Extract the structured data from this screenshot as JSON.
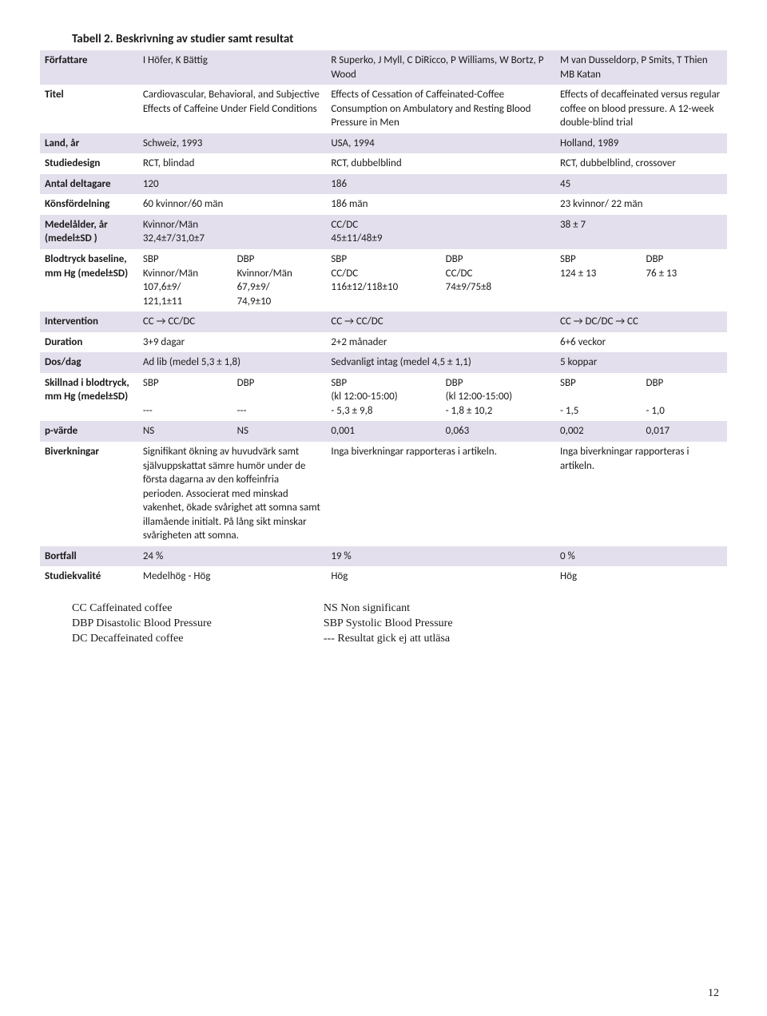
{
  "title": "Tabell 2. Beskrivning av studier samt resultat",
  "rows": {
    "forfattare": {
      "label": "Författare",
      "c1": "I Höfer, K Bättig",
      "c2": "R Superko, J Myll, C DiRicco, P Williams, W Bortz, P Wood",
      "c3": "M van Dusseldorp, P Smits, T Thien MB Katan"
    },
    "titel": {
      "label": "Titel",
      "c1": "Cardiovascular, Behavioral, and Subjective Effects of Caffeine Under Field Conditions",
      "c2": "Effects of Cessation of Caffeinated-Coffee Consumption on Ambulatory and Resting Blood Pressure in Men",
      "c3": "Effects of decaffeinated versus regular coffee on blood pressure. A 12-week double-blind trial"
    },
    "land": {
      "label": "Land, år",
      "c1": "Schweiz, 1993",
      "c2": "USA, 1994",
      "c3": "Holland, 1989"
    },
    "design": {
      "label": "Studiedesign",
      "c1": "RCT, blindad",
      "c2": "RCT, dubbelblind",
      "c3": "RCT, dubbelblind, crossover"
    },
    "antal": {
      "label": "Antal deltagare",
      "c1": "120",
      "c2": "186",
      "c3": "45"
    },
    "kons": {
      "label": "Könsfördelning",
      "c1": "60 kvinnor/60 män",
      "c2": "186 män",
      "c3": "23 kvinnor/ 22 män"
    },
    "alder": {
      "label": "Medelålder, år (medel±SD )",
      "c1": "Kvinnor/Män\n32,4±7/31,0±7",
      "c2": "CC/DC\n45±11/48±9",
      "c3": "38 ± 7"
    },
    "baseline": {
      "label": "Blodtryck baseline, mm Hg (medel±SD)",
      "c1a": "SBP\nKvinnor/Män\n107,6±9/\n121,1±11",
      "c1b": "DBP\nKvinnor/Män\n67,9±9/\n74,9±10",
      "c2a": "SBP\nCC/DC\n116±12/118±10",
      "c2b": "DBP\nCC/DC\n74±9/75±8",
      "c3a": "SBP\n124 ± 13",
      "c3b": "DBP\n76 ± 13"
    },
    "interv": {
      "label": "Intervention",
      "c1": "CC → CC/DC",
      "c2": "CC → CC/DC",
      "c3": "CC → DC/DC → CC"
    },
    "duration": {
      "label": "Duration",
      "c1": "3+9 dagar",
      "c2": "2+2 månader",
      "c3": "6+6 veckor"
    },
    "dos": {
      "label": "Dos/dag",
      "c1": "Ad lib (medel 5,3 ± 1,8)",
      "c2": "Sedvanligt intag (medel 4,5 ± 1,1)",
      "c3": "5 koppar"
    },
    "skillnad": {
      "label": "Skillnad i blodtryck, mm Hg (medel±SD)",
      "c1a": "SBP\n\n---",
      "c1b": "DBP\n\n---",
      "c2a": "SBP\n(kl 12:00-15:00)\n- 5,3 ± 9,8",
      "c2b": "DBP\n(kl 12:00-15:00)\n- 1,8 ± 10,2",
      "c3a": "SBP\n\n- 1,5",
      "c3b": "DBP\n\n- 1,0"
    },
    "pvarde": {
      "label": "p-värde",
      "c1a": "NS",
      "c1b": "NS",
      "c2a": "0,001",
      "c2b": "0,063",
      "c3a": "0,002",
      "c3b": "0,017"
    },
    "biverk": {
      "label": "Biverkningar",
      "c1": "Signifikant ökning av huvudvärk samt självuppskattat sämre humör under de första dagarna av den koffeinfria perioden. Associerat med minskad vakenhet, ökade svårighet att somna samt illamående initialt. På lång sikt minskar svårigheten att somna.",
      "c2": "Inga biverkningar rapporteras i artikeln.",
      "c3": "Inga biverkningar rapporteras i artikeln."
    },
    "bortfall": {
      "label": "Bortfall",
      "c1": "24 %",
      "c2": "19 %",
      "c3": "0 %"
    },
    "kvalite": {
      "label": "Studiekvalité",
      "c1": "Medelhög - Hög",
      "c2": "Hög",
      "c3": "Hög"
    }
  },
  "legend_left": "CC Caffeinated coffee\nDBP Disastolic Blood Pressure\nDC Decaffeinated coffee",
  "legend_right": "NS Non significant\nSBP Systolic Blood Pressure\n--- Resultat gick ej att utläsa",
  "page_number": "12",
  "colors": {
    "stripe": "#e3dfec",
    "plain": "#ffffff",
    "text": "#1a1a1a"
  },
  "col_widths": {
    "label": 120,
    "study1": 230,
    "study2": 280,
    "study3": 210
  }
}
